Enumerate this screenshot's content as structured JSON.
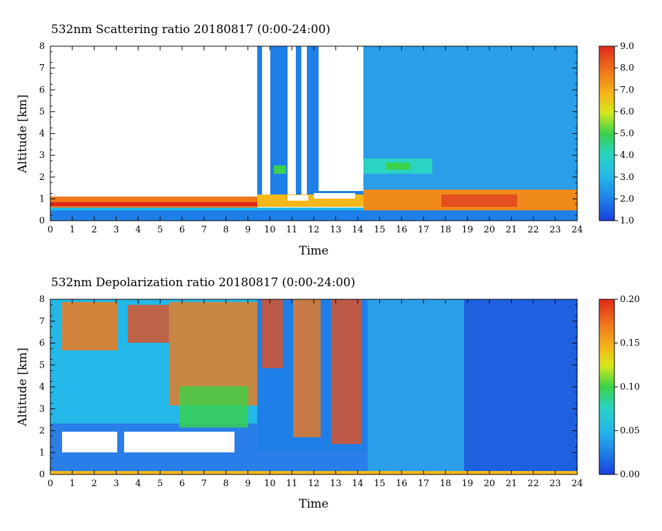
{
  "chart_data": [
    {
      "type": "heatmap",
      "title": "532nm Scattering ratio  20180817 (0:00-24:00)",
      "xlabel": "Time",
      "ylabel": "Altitude [km]",
      "x_ticks": [
        "0",
        "1",
        "2",
        "3",
        "4",
        "5",
        "6",
        "7",
        "8",
        "9",
        "10",
        "11",
        "12",
        "13",
        "14",
        "15",
        "16",
        "17",
        "18",
        "19",
        "20",
        "21",
        "22",
        "23",
        "24"
      ],
      "y_ticks": [
        "0",
        "1",
        "2",
        "3",
        "4",
        "5",
        "6",
        "7",
        "8"
      ],
      "xlim": [
        0,
        24
      ],
      "ylim": [
        0,
        8
      ],
      "colorbar": {
        "ticks": [
          "1.0",
          "2.0",
          "3.0",
          "4.0",
          "5.0",
          "6.0",
          "7.0",
          "8.0",
          "9.0"
        ],
        "range": [
          1.0,
          9.0
        ]
      },
      "features": {
        "cloud_white_times": [
          [
            9.3,
            9.5
          ],
          [
            10.6,
            11.0
          ],
          [
            11.2,
            11.5
          ],
          [
            12.6,
            14.2
          ]
        ],
        "boundary_layer_top_km": 1.3,
        "aerosol_layer": {
          "time": [
            14.5,
            17.0
          ],
          "altitude_km": [
            2.3,
            2.8
          ],
          "value": 4.0
        },
        "high_value_region": {
          "time": [
            14.2,
            24.0
          ],
          "altitude_km": [
            0.3,
            1.3
          ],
          "value": 8.0
        }
      }
    },
    {
      "type": "heatmap",
      "title": "532nm Depolarization ratio  20180817 (0:00-24:00)",
      "xlabel": "Time",
      "ylabel": "Altitude [km]",
      "x_ticks": [
        "0",
        "1",
        "2",
        "3",
        "4",
        "5",
        "6",
        "7",
        "8",
        "9",
        "10",
        "11",
        "12",
        "13",
        "14",
        "15",
        "16",
        "17",
        "18",
        "19",
        "20",
        "21",
        "22",
        "23",
        "24"
      ],
      "y_ticks": [
        "0",
        "1",
        "2",
        "3",
        "4",
        "5",
        "6",
        "7",
        "8"
      ],
      "xlim": [
        0,
        24
      ],
      "ylim": [
        0,
        8
      ],
      "colorbar": {
        "ticks": [
          "0.00",
          "0.05",
          "0.10",
          "0.15",
          "0.20"
        ],
        "range": [
          0.0,
          0.2
        ]
      },
      "features": {
        "noisy_region": {
          "time": [
            0,
            9.5
          ],
          "altitude_km": [
            2.0,
            8.0
          ]
        },
        "low_cloud": {
          "time": [
            0.5,
            9.0
          ],
          "altitude_km": [
            1.0,
            1.9
          ]
        },
        "clear_region": {
          "time": [
            14.2,
            24.0
          ],
          "value": 0.02
        }
      }
    }
  ]
}
